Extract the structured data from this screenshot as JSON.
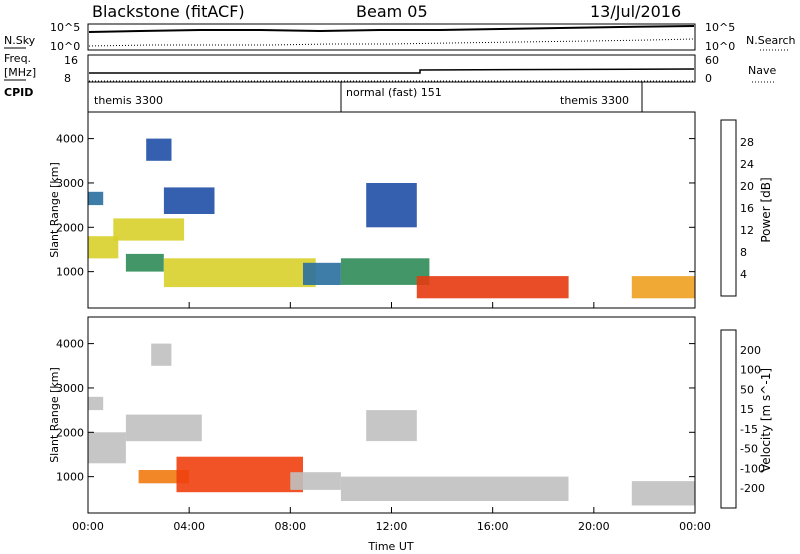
{
  "header": {
    "station": "Blackstone (fitACF)",
    "beam": "Beam 05",
    "date": "13/Jul/2016"
  },
  "top_labels": {
    "nsky": "N.Sky",
    "freq": "Freq.",
    "mhz": "[MHz]",
    "cpid": "CPID",
    "nsearch": "N.Search",
    "nave": "Nave",
    "nsky_ticks": [
      "10^5",
      "10^0"
    ],
    "nsearch_ticks": [
      "10^5",
      "10^0"
    ],
    "freq_ticks": [
      "16",
      "8"
    ],
    "nave_ticks": [
      "60",
      "0"
    ]
  },
  "cpid_segments": [
    "themis 3300",
    "normal (fast) 151",
    "themis 3300"
  ],
  "x_axis": {
    "label": "Time UT",
    "ticks": [
      "00:00",
      "04:00",
      "08:00",
      "12:00",
      "16:00",
      "20:00",
      "00:00"
    ]
  },
  "colors": {
    "power_bins": [
      "#1f2fd6",
      "#1f4fa6",
      "#2a6fa0",
      "#2e8b57",
      "#6cae3a",
      "#d8d02a",
      "#f0a020",
      "#ee7010",
      "#e63a10",
      "#e40000"
    ],
    "velocity_bins": [
      "#e40000",
      "#f04010",
      "#f07a10",
      "#f4b020",
      "#c0c0c0",
      "#c0c0c0",
      "#68c030",
      "#2c8a48",
      "#2a5fa5",
      "#2030c8"
    ]
  },
  "chart_data": [
    {
      "type": "heatmap",
      "title": "",
      "ylabel": "Slant Range [km]",
      "xlabel": "",
      "x_range_hours": [
        0,
        24
      ],
      "ylim": [
        180,
        4600
      ],
      "y_ticks": [
        "1000",
        "2000",
        "3000",
        "4000"
      ],
      "colorbar": {
        "label": "Power [dB]",
        "range": [
          0,
          32
        ],
        "ticks": [
          "4",
          "8",
          "12",
          "16",
          "20",
          "24",
          "28"
        ]
      },
      "features": [
        {
          "start_h": 0.0,
          "end_h": 1.2,
          "range_km": [
            1300,
            1800
          ],
          "value_db": 18
        },
        {
          "start_h": 0.0,
          "end_h": 0.6,
          "range_km": [
            2500,
            2800
          ],
          "value_db": 8
        },
        {
          "start_h": 1.0,
          "end_h": 3.8,
          "range_km": [
            1700,
            2200
          ],
          "value_db": 16
        },
        {
          "start_h": 2.3,
          "end_h": 3.3,
          "range_km": [
            3500,
            4000
          ],
          "value_db": 6
        },
        {
          "start_h": 3.0,
          "end_h": 5.0,
          "range_km": [
            2300,
            2900
          ],
          "value_db": 6
        },
        {
          "start_h": 1.5,
          "end_h": 3.0,
          "range_km": [
            1000,
            1400
          ],
          "value_db": 10
        },
        {
          "start_h": 3.0,
          "end_h": 9.0,
          "range_km": [
            650,
            1300
          ],
          "value_db": 16
        },
        {
          "start_h": 8.5,
          "end_h": 10.0,
          "range_km": [
            700,
            1200
          ],
          "value_db": 8
        },
        {
          "start_h": 10.0,
          "end_h": 13.5,
          "range_km": [
            700,
            1300
          ],
          "value_db": 10
        },
        {
          "start_h": 11.0,
          "end_h": 13.0,
          "range_km": [
            2000,
            3000
          ],
          "value_db": 6
        },
        {
          "start_h": 13.0,
          "end_h": 19.0,
          "range_km": [
            400,
            900
          ],
          "value_db": 28
        },
        {
          "start_h": 21.5,
          "end_h": 24.0,
          "range_km": [
            400,
            900
          ],
          "value_db": 20
        }
      ]
    },
    {
      "type": "heatmap",
      "title": "",
      "ylabel": "Slant Range [km]",
      "xlabel": "Time UT",
      "x_range_hours": [
        0,
        24
      ],
      "ylim": [
        180,
        4600
      ],
      "y_ticks": [
        "1000",
        "2000",
        "3000",
        "4000"
      ],
      "colorbar": {
        "label": "Velocity [m s^-1]",
        "range": [
          -250,
          250
        ],
        "ticks": [
          "200",
          "100",
          "50",
          "15",
          "-15",
          "-50",
          "-100",
          "-200"
        ]
      },
      "features": [
        {
          "start_h": 0.0,
          "end_h": 1.5,
          "range_km": [
            1300,
            2000
          ],
          "value_ms": 0
        },
        {
          "start_h": 1.5,
          "end_h": 4.5,
          "range_km": [
            1800,
            2400
          ],
          "value_ms": 0
        },
        {
          "start_h": 0.0,
          "end_h": 0.6,
          "range_km": [
            2500,
            2800
          ],
          "value_ms": 0
        },
        {
          "start_h": 2.5,
          "end_h": 3.3,
          "range_km": [
            3500,
            4000
          ],
          "value_ms": 0
        },
        {
          "start_h": 2.0,
          "end_h": 4.0,
          "range_km": [
            850,
            1150
          ],
          "value_ms": -40
        },
        {
          "start_h": 3.5,
          "end_h": 8.5,
          "range_km": [
            650,
            1450
          ],
          "value_ms": -90
        },
        {
          "start_h": 8.0,
          "end_h": 10.0,
          "range_km": [
            700,
            1100
          ],
          "value_ms": 0
        },
        {
          "start_h": 10.0,
          "end_h": 19.0,
          "range_km": [
            450,
            1000
          ],
          "value_ms": 0
        },
        {
          "start_h": 21.5,
          "end_h": 24.0,
          "range_km": [
            350,
            900
          ],
          "value_ms": 0
        },
        {
          "start_h": 11.0,
          "end_h": 13.0,
          "range_km": [
            1800,
            2500
          ],
          "value_ms": 0
        }
      ]
    }
  ]
}
